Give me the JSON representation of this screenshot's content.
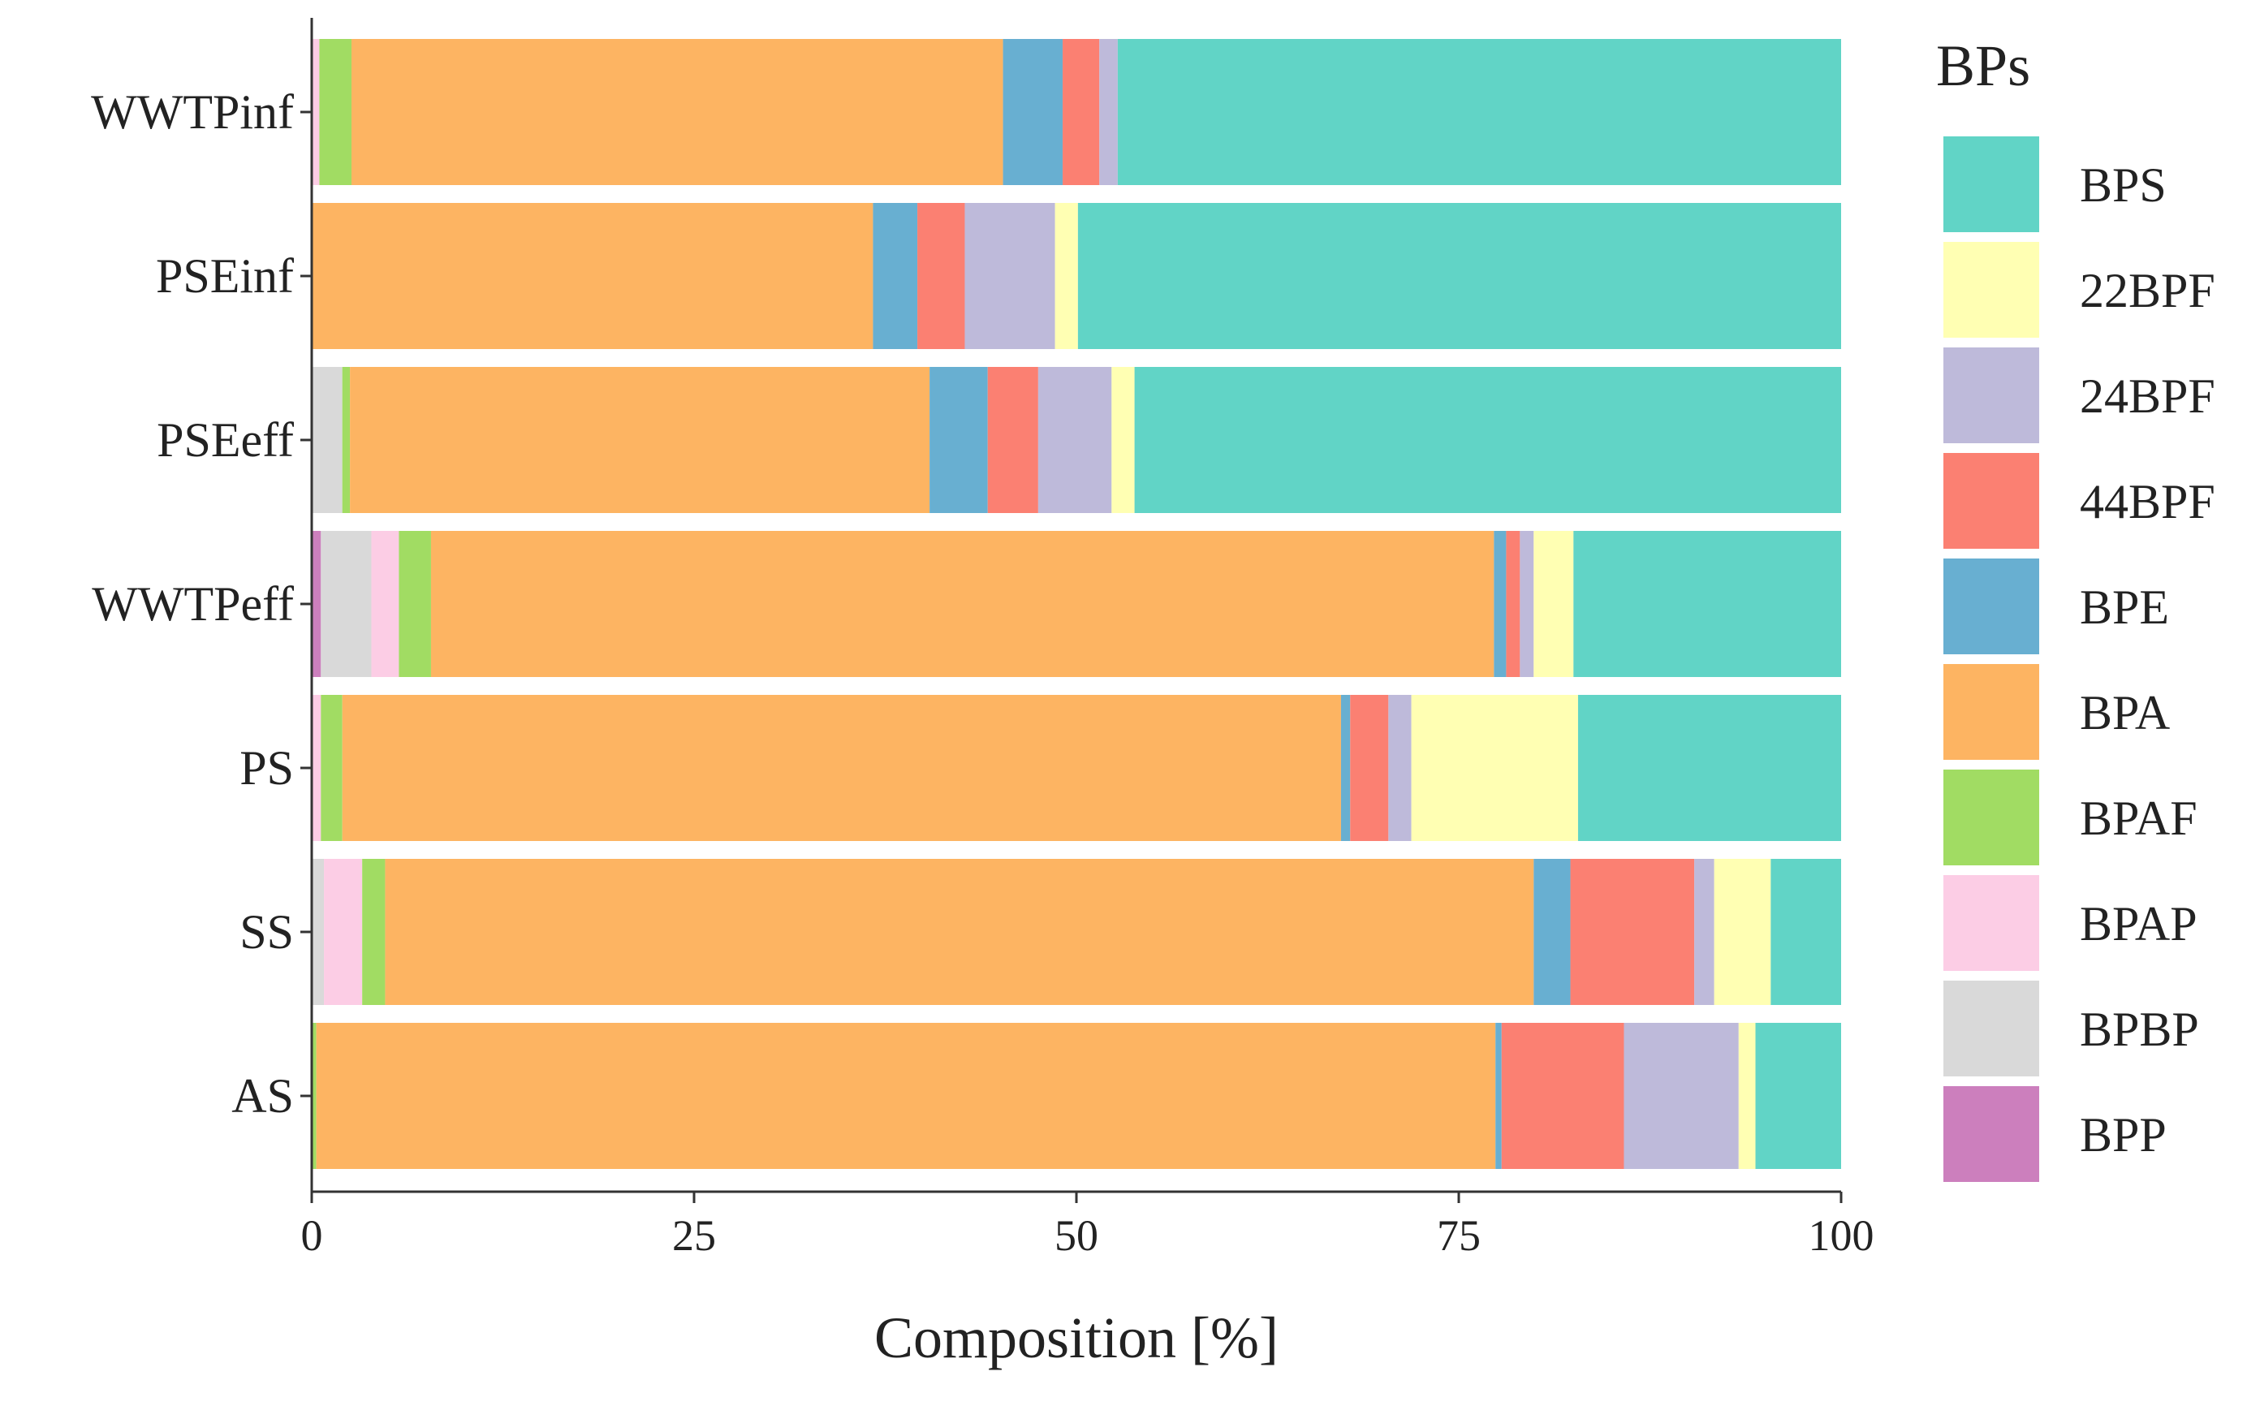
{
  "chart_data": {
    "type": "bar",
    "orientation": "horizontal",
    "stacked": true,
    "title": "",
    "xlabel": "Composition [%]",
    "ylabel": "",
    "xlim": [
      0,
      100
    ],
    "xticks": [
      0,
      25,
      50,
      75,
      100
    ],
    "xtick_labels": [
      "0",
      "25",
      "50",
      "75",
      "100"
    ],
    "categories": [
      "WWTPinf",
      "PSEinf",
      "PSEeff",
      "WWTPeff",
      "PS",
      "SS",
      "AS"
    ],
    "legend_title": "BPs",
    "legend_position": "right",
    "series": [
      {
        "name": "BPP",
        "color": "#cc7fbd",
        "values": [
          0.0,
          0.0,
          0.0,
          0.6,
          0.0,
          0.0,
          0.0
        ]
      },
      {
        "name": "BPBP",
        "color": "#d9d9d9",
        "values": [
          0.0,
          0.0,
          2.0,
          3.3,
          0.0,
          0.8,
          0.0
        ]
      },
      {
        "name": "BPAP",
        "color": "#fccde5",
        "values": [
          0.5,
          0.0,
          0.0,
          1.8,
          0.6,
          2.5,
          0.0
        ]
      },
      {
        "name": "BPAF",
        "color": "#a1dc63",
        "values": [
          2.1,
          0.0,
          0.5,
          2.1,
          1.4,
          1.5,
          0.3
        ]
      },
      {
        "name": "BPA",
        "color": "#fdb462",
        "values": [
          42.6,
          36.7,
          37.9,
          69.5,
          65.3,
          75.1,
          77.1
        ]
      },
      {
        "name": "BPE",
        "color": "#68afd1",
        "values": [
          3.9,
          2.9,
          3.8,
          0.8,
          0.6,
          2.4,
          0.4
        ]
      },
      {
        "name": "44BPF",
        "color": "#fb8072",
        "values": [
          2.4,
          3.1,
          3.3,
          0.9,
          2.5,
          8.1,
          8.0
        ]
      },
      {
        "name": "24BPF",
        "color": "#bebada",
        "values": [
          1.2,
          5.9,
          4.8,
          0.9,
          1.5,
          1.3,
          7.5
        ]
      },
      {
        "name": "22BPF",
        "color": "#ffffb3",
        "values": [
          0.0,
          1.5,
          1.5,
          2.6,
          10.9,
          3.7,
          1.1
        ]
      },
      {
        "name": "BPS",
        "color": "#61d4c6",
        "values": [
          47.3,
          49.9,
          46.2,
          17.5,
          17.2,
          4.6,
          5.6
        ]
      }
    ],
    "legend_order": [
      "BPS",
      "22BPF",
      "24BPF",
      "44BPF",
      "BPE",
      "BPA",
      "BPAF",
      "BPAP",
      "BPBP",
      "BPP"
    ],
    "grid": false
  }
}
